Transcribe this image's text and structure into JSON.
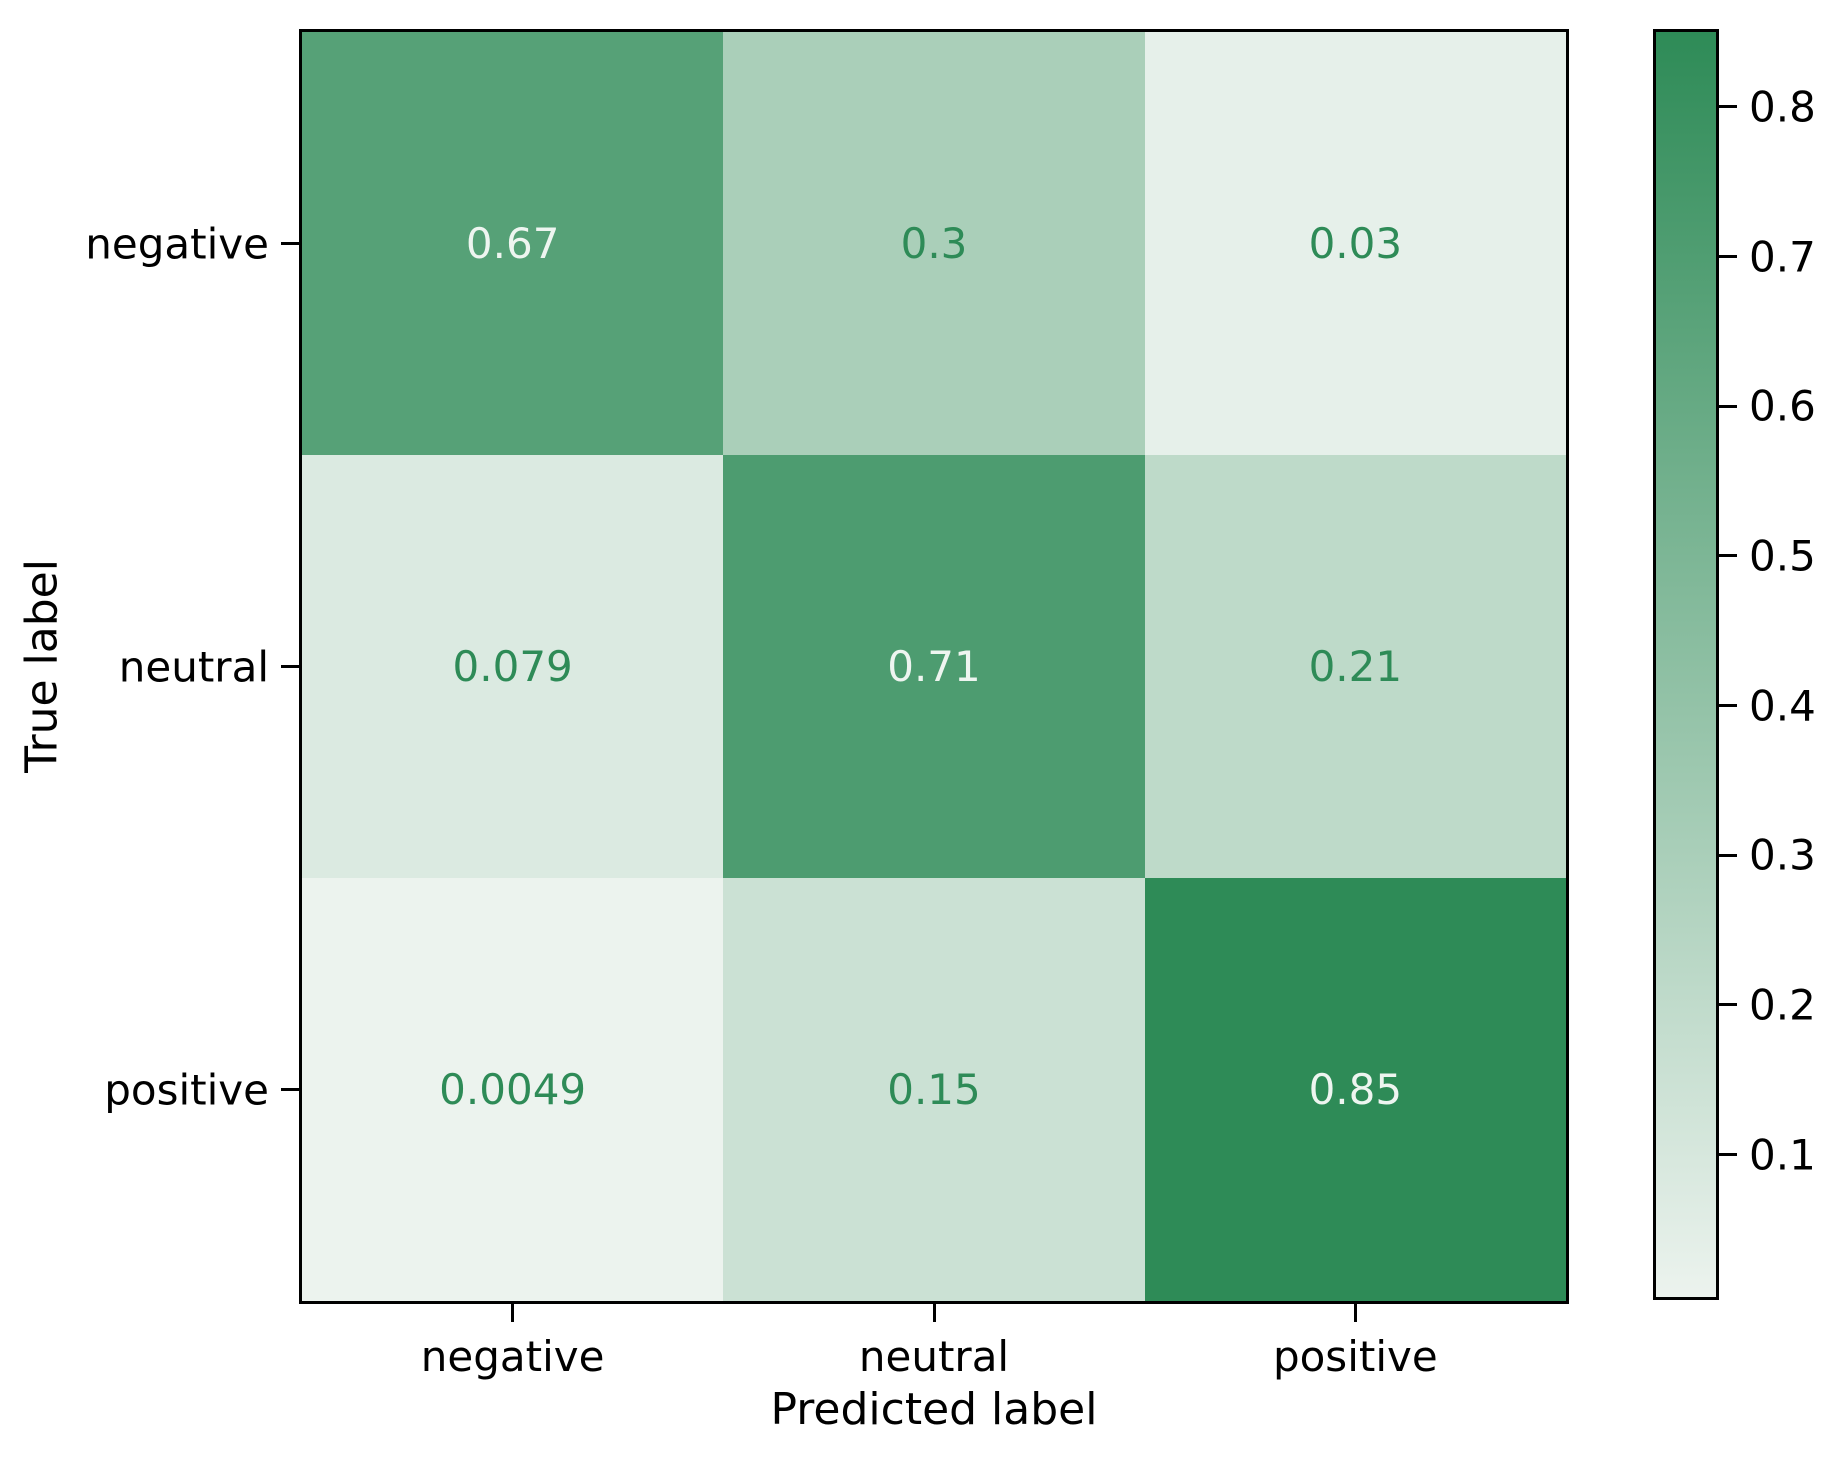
{
  "chart_data": {
    "type": "heatmap",
    "subtype": "confusion-matrix",
    "title": "",
    "xlabel": "Predicted label",
    "ylabel": "True label",
    "x_categories": [
      "negative",
      "neutral",
      "positive"
    ],
    "y_categories": [
      "negative",
      "neutral",
      "positive"
    ],
    "matrix": [
      [
        0.67,
        0.3,
        0.03
      ],
      [
        0.079,
        0.71,
        0.21
      ],
      [
        0.0049,
        0.15,
        0.85
      ]
    ],
    "cell_labels": [
      [
        "0.67",
        "0.3",
        "0.03"
      ],
      [
        "0.079",
        "0.71",
        "0.21"
      ],
      [
        "0.0049",
        "0.15",
        "0.85"
      ]
    ],
    "vmin": 0.0049,
    "vmax": 0.85,
    "colormap": {
      "name": "light-seagreen",
      "min_color": "#ecf3ee",
      "max_color": "#2e8b57"
    },
    "annotation_color_on_dark": "#eef5f0",
    "annotation_color_on_light": "#2e8b57",
    "colorbar_ticks": [
      "0.1",
      "0.2",
      "0.3",
      "0.4",
      "0.5",
      "0.6",
      "0.7",
      "0.8"
    ],
    "legend_position": "right-colorbar",
    "grid": false,
    "axis_color": "#000000"
  }
}
